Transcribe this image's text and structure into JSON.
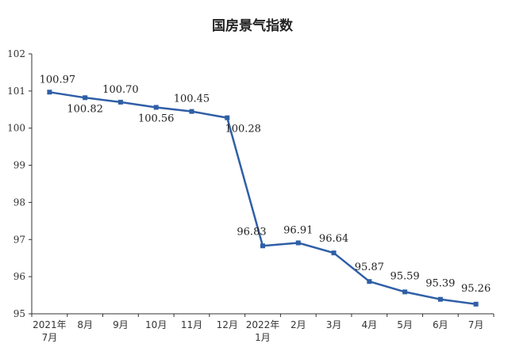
{
  "chart_data": {
    "type": "line",
    "title": "国房景气指数",
    "xlabel": "",
    "ylabel": "",
    "ylim": [
      95,
      102
    ],
    "yticks": [
      95,
      96,
      97,
      98,
      99,
      100,
      101,
      102
    ],
    "grid": false,
    "legend": "none",
    "categories": [
      [
        "2021年",
        "7月"
      ],
      [
        "8月"
      ],
      [
        "9月"
      ],
      [
        "10月"
      ],
      [
        "11月"
      ],
      [
        "12月"
      ],
      [
        "2022年",
        "1月"
      ],
      [
        "2月"
      ],
      [
        "3月"
      ],
      [
        "4月"
      ],
      [
        "5月"
      ],
      [
        "6月"
      ],
      [
        "7月"
      ]
    ],
    "values": [
      100.97,
      100.82,
      100.7,
      100.56,
      100.45,
      100.28,
      96.83,
      96.91,
      96.64,
      95.87,
      95.59,
      95.39,
      95.26
    ],
    "labels": [
      "100.97",
      "100.82",
      "100.70",
      "100.56",
      "100.45",
      "100.28",
      "96.83",
      "96.91",
      "96.64",
      "95.87",
      "95.59",
      "95.39",
      "95.26"
    ],
    "colors": {
      "line": "#2f5fa6",
      "axis": "#333333"
    }
  }
}
